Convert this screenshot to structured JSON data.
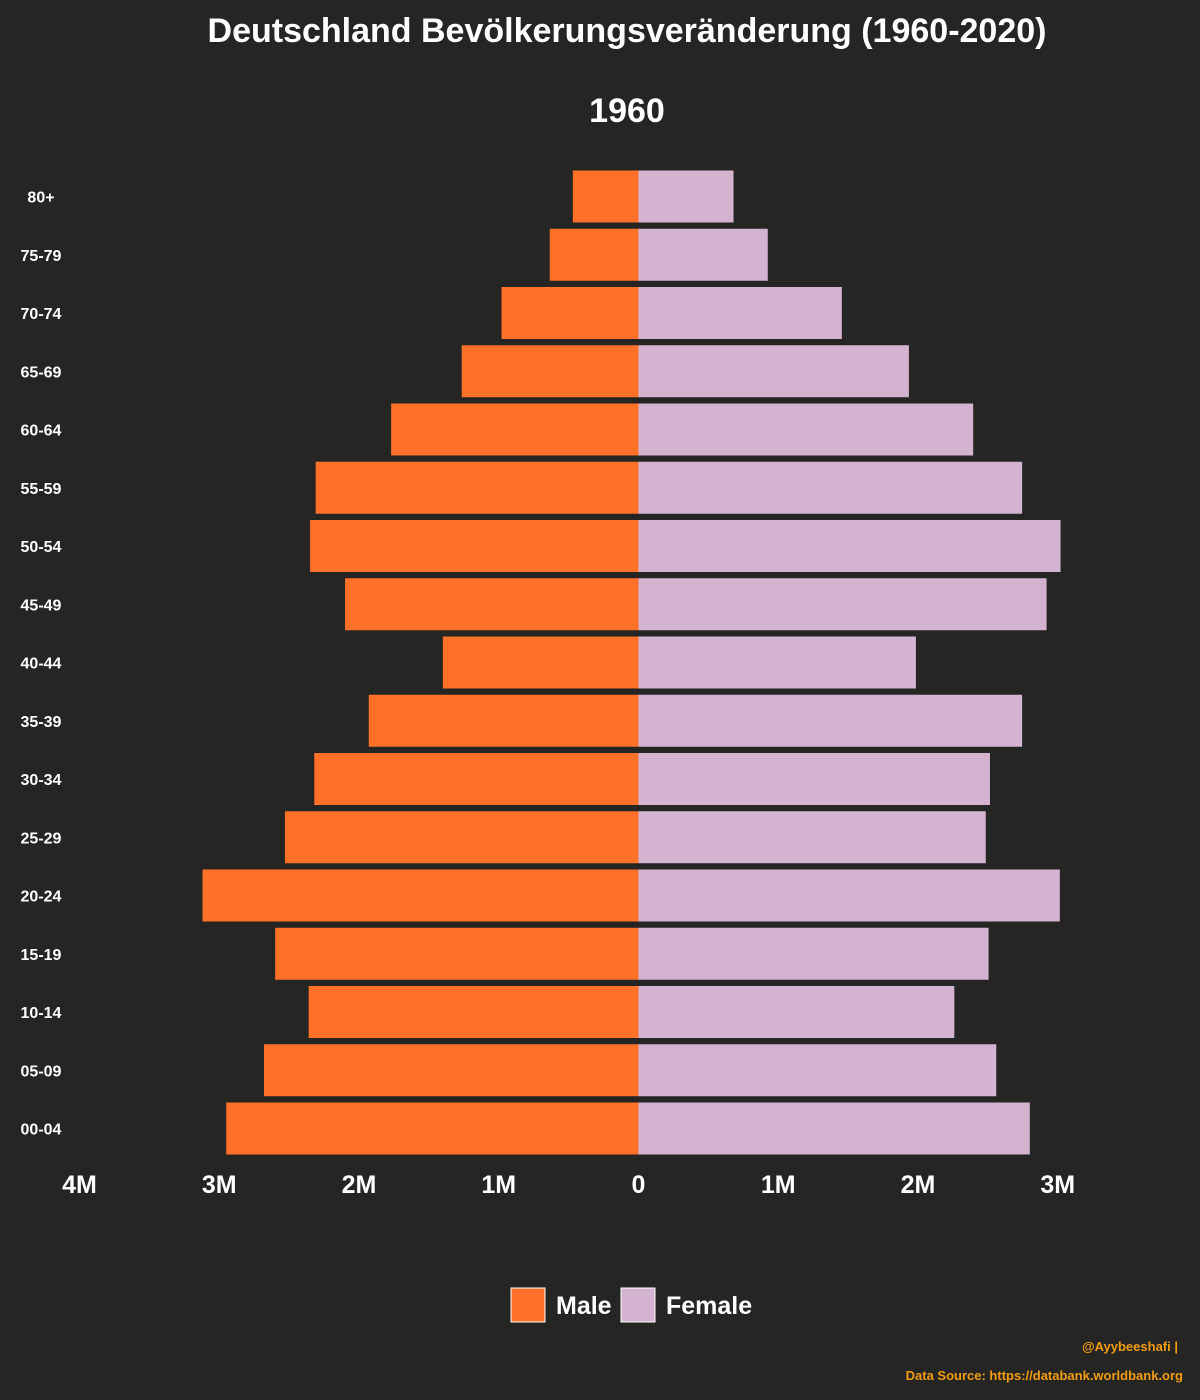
{
  "chart_data": {
    "type": "bar",
    "orientation": "horizontal",
    "title": "Deutschland Bevölkerungsveränderung (1960-2020)",
    "subtitle": "1960",
    "categories": [
      "80+",
      "75-79",
      "70-74",
      "65-69",
      "60-64",
      "55-59",
      "50-54",
      "45-49",
      "40-44",
      "35-39",
      "30-34",
      "25-29",
      "20-24",
      "15-19",
      "10-14",
      "05-09",
      "00-04"
    ],
    "series": [
      {
        "name": "Male",
        "color": "#ff7029",
        "values": [
          470000,
          635000,
          980000,
          1265000,
          1770000,
          2310000,
          2350000,
          2100000,
          1400000,
          1930000,
          2320000,
          2530000,
          3120000,
          2600000,
          2360000,
          2680000,
          2950000
        ]
      },
      {
        "name": "Female",
        "color": "#d4b3d1",
        "values": [
          680000,
          925000,
          1455000,
          1935000,
          2395000,
          2745000,
          3020000,
          2920000,
          1985000,
          2745000,
          2515000,
          2485000,
          3015000,
          2505000,
          2260000,
          2560000,
          2800000
        ]
      }
    ],
    "xlim": [
      -4000000,
      3000000
    ],
    "x_ticks": [
      {
        "value": -4000000,
        "label": "4M"
      },
      {
        "value": -3000000,
        "label": "3M"
      },
      {
        "value": -2000000,
        "label": "2M"
      },
      {
        "value": -1000000,
        "label": "1M"
      },
      {
        "value": 0,
        "label": "0"
      },
      {
        "value": 1000000,
        "label": "1M"
      },
      {
        "value": 2000000,
        "label": "2M"
      },
      {
        "value": 3000000,
        "label": "3M"
      }
    ],
    "legend_position": "bottom-center",
    "grid": false
  },
  "credits": {
    "author": "@Ayybeeshafi |",
    "source": "Data Source: https://databank.worldbank.org"
  }
}
